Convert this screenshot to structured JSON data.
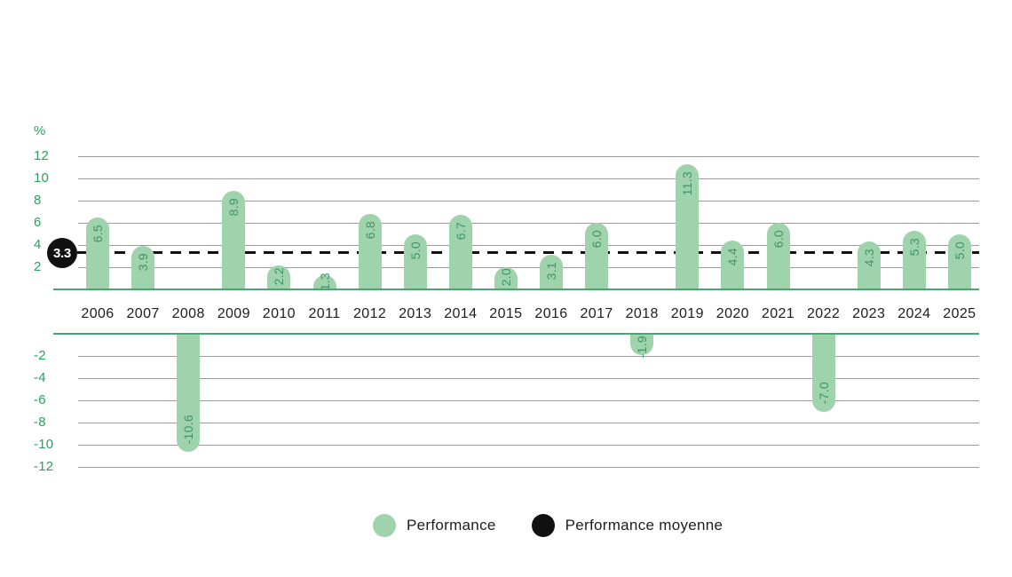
{
  "chart_data": {
    "type": "bar",
    "title": "",
    "unit_label": "%",
    "categories": [
      "2006",
      "2007",
      "2008",
      "2009",
      "2010",
      "2011",
      "2012",
      "2013",
      "2014",
      "2015",
      "2016",
      "2017",
      "2018",
      "2019",
      "2020",
      "2021",
      "2022",
      "2023",
      "2024",
      "2025"
    ],
    "series": [
      {
        "name": "Performance",
        "values": [
          6.5,
          3.9,
          -10.6,
          8.9,
          2.2,
          1.3,
          6.8,
          5.0,
          6.7,
          2.0,
          3.1,
          6.0,
          -1.9,
          11.3,
          4.4,
          6.0,
          -7.0,
          4.3,
          5.3,
          5.0
        ],
        "value_labels": [
          "6.5",
          "3.9",
          "-10.6",
          "8.9",
          "2.2",
          "1.3",
          "6.8",
          "5.0",
          "6.7",
          "2.0",
          "3.1",
          "6.0",
          "-1.9",
          "11.3",
          "4.4",
          "6.0",
          "-7.0",
          "4.3",
          "5.3",
          "5.0"
        ]
      }
    ],
    "average_line": {
      "name": "Performance moyenne",
      "value": 3.3,
      "badge_label": "3.3",
      "style": "dashed",
      "color": "#111111"
    },
    "y_ticks_positive": [
      12,
      10,
      8,
      6,
      4,
      2
    ],
    "y_ticks_negative": [
      -2,
      -4,
      -6,
      -8,
      -10,
      -12
    ],
    "ylim": [
      -12,
      12
    ],
    "grid": true,
    "legend_position": "bottom",
    "legend": [
      {
        "label": "Performance",
        "color": "#9ed3ab"
      },
      {
        "label": "Performance moyenne",
        "color": "#111111"
      }
    ]
  },
  "colors": {
    "bar": "#9ed3ab",
    "bar_label_text": "#3f9566",
    "axis_text": "#2aa05f",
    "zero_baseline": "#43a873",
    "gridline": "#9c9c9c",
    "year_text": "#1d1d1b",
    "average_line": "#111111",
    "badge_background": "#111111",
    "badge_text": "#ffffff"
  }
}
